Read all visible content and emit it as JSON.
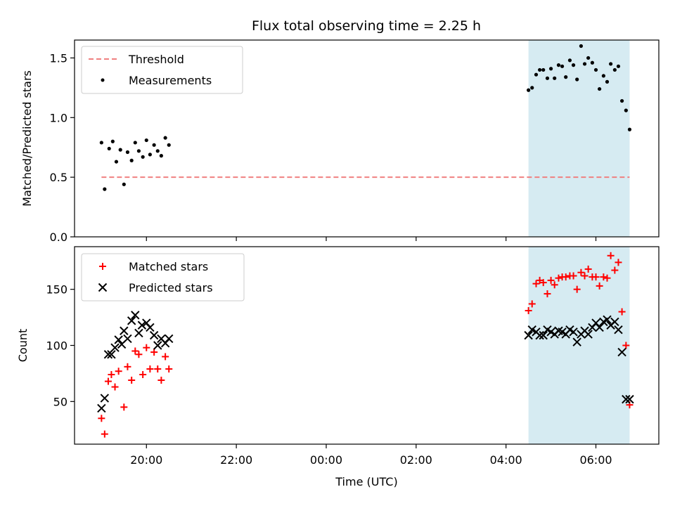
{
  "title": "Flux total observing time = 2.25 h",
  "colors": {
    "threshold": "#f08080",
    "measurement": "#000000",
    "matched": "#ff0000",
    "predicted": "#000000",
    "span": "#add8e6"
  },
  "chart_data": [
    {
      "type": "scatter",
      "panel": "top",
      "xlabel": "",
      "ylabel": "Matched/Predicted stars",
      "xlim": [
        -1.6,
        11.4
      ],
      "ylim": [
        0.0,
        1.65
      ],
      "yticks": [
        0.0,
        0.5,
        1.0,
        1.5
      ],
      "ytick_labels": [
        "0.0",
        "0.5",
        "1.0",
        "1.5"
      ],
      "shaded_span": [
        8.5,
        10.75
      ],
      "legend_placement": "upper-left",
      "threshold": {
        "name": "Threshold",
        "y": 0.5,
        "x": [
          -1.0,
          10.75
        ]
      },
      "series": [
        {
          "name": "Measurements",
          "marker": "dot",
          "x": [
            -1.0,
            -0.93,
            -0.83,
            -0.75,
            -0.67,
            -0.58,
            -0.5,
            -0.42,
            -0.33,
            -0.25,
            -0.17,
            -0.08,
            0.0,
            0.08,
            0.17,
            0.25,
            0.33,
            0.42,
            0.5,
            8.5,
            8.58,
            8.67,
            8.75,
            8.83,
            8.92,
            9.0,
            9.08,
            9.17,
            9.25,
            9.33,
            9.42,
            9.5,
            9.58,
            9.67,
            9.75,
            9.83,
            9.92,
            10.0,
            10.08,
            10.17,
            10.25,
            10.33,
            10.42,
            10.5,
            10.58,
            10.67,
            10.75
          ],
          "y": [
            0.79,
            0.4,
            0.74,
            0.8,
            0.63,
            0.73,
            0.44,
            0.71,
            0.64,
            0.79,
            0.72,
            0.67,
            0.81,
            0.69,
            0.77,
            0.72,
            0.68,
            0.83,
            0.77,
            1.23,
            1.25,
            1.36,
            1.4,
            1.4,
            1.33,
            1.41,
            1.33,
            1.44,
            1.43,
            1.34,
            1.48,
            1.44,
            1.32,
            1.6,
            1.45,
            1.5,
            1.46,
            1.4,
            1.24,
            1.35,
            1.3,
            1.45,
            1.4,
            1.43,
            1.14,
            1.06,
            0.9
          ]
        }
      ]
    },
    {
      "type": "scatter",
      "panel": "bottom",
      "xlabel": "Time (UTC)",
      "ylabel": "Count",
      "xlim": [
        -1.6,
        11.4
      ],
      "ylim": [
        12,
        188
      ],
      "xticks": [
        0,
        2,
        4,
        6,
        8,
        10
      ],
      "xtick_labels": [
        "20:00",
        "22:00",
        "00:00",
        "02:00",
        "04:00",
        "06:00"
      ],
      "yticks": [
        50,
        100,
        150
      ],
      "ytick_labels": [
        "50",
        "100",
        "150"
      ],
      "shaded_span": [
        8.5,
        10.75
      ],
      "legend_placement": "upper-left",
      "series": [
        {
          "name": "Matched stars",
          "marker": "plus",
          "x": [
            -1.0,
            -0.93,
            -0.85,
            -0.78,
            -0.7,
            -0.62,
            -0.5,
            -0.42,
            -0.33,
            -0.25,
            -0.17,
            -0.08,
            0.0,
            0.08,
            0.17,
            0.25,
            0.33,
            0.42,
            0.5,
            8.5,
            8.58,
            8.67,
            8.75,
            8.83,
            8.92,
            9.0,
            9.08,
            9.17,
            9.25,
            9.33,
            9.42,
            9.5,
            9.58,
            9.67,
            9.75,
            9.83,
            9.92,
            10.0,
            10.08,
            10.17,
            10.25,
            10.33,
            10.42,
            10.5,
            10.58,
            10.67,
            10.75
          ],
          "y": [
            35,
            21,
            68,
            74,
            63,
            77,
            45,
            81,
            69,
            95,
            92,
            74,
            98,
            79,
            94,
            79,
            69,
            90,
            79,
            131,
            137,
            155,
            158,
            156,
            146,
            158,
            154,
            160,
            161,
            161,
            162,
            162,
            150,
            165,
            162,
            168,
            161,
            161,
            153,
            161,
            160,
            180,
            167,
            174,
            130,
            100,
            47
          ]
        },
        {
          "name": "Predicted stars",
          "marker": "x",
          "x": [
            -1.0,
            -0.93,
            -0.85,
            -0.78,
            -0.7,
            -0.62,
            -0.55,
            -0.5,
            -0.42,
            -0.33,
            -0.25,
            -0.17,
            -0.1,
            0.0,
            0.08,
            0.17,
            0.25,
            0.33,
            0.42,
            0.5,
            8.5,
            8.58,
            8.67,
            8.75,
            8.83,
            8.92,
            9.0,
            9.08,
            9.17,
            9.25,
            9.33,
            9.42,
            9.5,
            9.58,
            9.67,
            9.75,
            9.83,
            9.92,
            10.0,
            10.08,
            10.17,
            10.25,
            10.33,
            10.42,
            10.5,
            10.58,
            10.67,
            10.75
          ],
          "y": [
            44,
            53,
            92,
            92,
            98,
            105,
            101,
            113,
            106,
            122,
            127,
            111,
            118,
            120,
            116,
            109,
            100,
            106,
            102,
            106,
            109,
            114,
            112,
            109,
            109,
            114,
            112,
            110,
            113,
            112,
            110,
            114,
            112,
            103,
            110,
            113,
            110,
            116,
            120,
            116,
            121,
            123,
            118,
            121,
            114,
            94,
            52,
            52
          ]
        }
      ]
    }
  ]
}
